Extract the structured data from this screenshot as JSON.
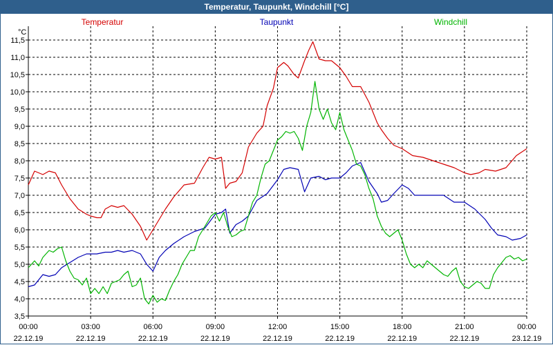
{
  "window": {
    "title": "Temperatur, Taupunkt, Windchill [°C]"
  },
  "chart_data": {
    "type": "line",
    "title": "Temperatur, Taupunkt, Windchill [°C]",
    "ylabel": "°C",
    "xlabel": "",
    "ylim": [
      3.5,
      11.8
    ],
    "xlim": [
      0,
      24
    ],
    "grid": true,
    "yticks": [
      "3,5",
      "4,0",
      "4,5",
      "5,0",
      "5,5",
      "6,0",
      "6,5",
      "7,0",
      "7,5",
      "8,0",
      "8,5",
      "9,0",
      "9,5",
      "10,0",
      "10,5",
      "11,0",
      "11,5"
    ],
    "ytick_values": [
      3.5,
      4.0,
      4.5,
      5.0,
      5.5,
      6.0,
      6.5,
      7.0,
      7.5,
      8.0,
      8.5,
      9.0,
      9.5,
      10.0,
      10.5,
      11.0,
      11.5
    ],
    "xticks": [
      {
        "x": 0,
        "time": "00:00",
        "date": "22.12.19"
      },
      {
        "x": 3,
        "time": "03:00",
        "date": "22.12.19"
      },
      {
        "x": 6,
        "time": "06:00",
        "date": "22.12.19"
      },
      {
        "x": 9,
        "time": "09:00",
        "date": "22.12.19"
      },
      {
        "x": 12,
        "time": "12:00",
        "date": "22.12.19"
      },
      {
        "x": 15,
        "time": "15:00",
        "date": "22.12.19"
      },
      {
        "x": 18,
        "time": "18:00",
        "date": "22.12.19"
      },
      {
        "x": 21,
        "time": "21:00",
        "date": "22.12.19"
      },
      {
        "x": 24,
        "time": "00:00",
        "date": "23.12.19"
      }
    ],
    "series": [
      {
        "name": "Temperatur",
        "color": "#d40000",
        "x": [
          0,
          0.3,
          0.7,
          1.0,
          1.3,
          1.6,
          2.0,
          2.4,
          2.8,
          3.0,
          3.3,
          3.5,
          3.7,
          4.0,
          4.3,
          4.6,
          5.0,
          5.4,
          5.7,
          6.0,
          6.3,
          6.6,
          7.0,
          7.5,
          8.0,
          8.4,
          8.7,
          9.0,
          9.3,
          9.5,
          9.7,
          10.0,
          10.3,
          10.6,
          11.0,
          11.3,
          11.5,
          11.8,
          12.0,
          12.3,
          12.5,
          12.8,
          13.0,
          13.3,
          13.5,
          13.7,
          14.0,
          14.3,
          14.6,
          15.0,
          15.3,
          15.6,
          16.0,
          16.4,
          16.8,
          17.0,
          17.3,
          17.6,
          18.0,
          18.5,
          19.0,
          19.5,
          20.0,
          20.5,
          21.0,
          21.3,
          21.7,
          22.0,
          22.5,
          23.0,
          23.5,
          24.0
        ],
        "values": [
          7.3,
          7.7,
          7.6,
          7.7,
          7.65,
          7.3,
          6.9,
          6.6,
          6.45,
          6.4,
          6.35,
          6.35,
          6.6,
          6.7,
          6.65,
          6.7,
          6.45,
          6.1,
          5.7,
          6.0,
          6.3,
          6.6,
          6.95,
          7.3,
          7.35,
          7.8,
          8.1,
          8.05,
          8.1,
          7.2,
          7.35,
          7.4,
          7.65,
          8.4,
          8.8,
          9.0,
          9.6,
          10.1,
          10.7,
          10.85,
          10.75,
          10.5,
          10.4,
          10.9,
          11.2,
          11.45,
          10.95,
          10.9,
          10.9,
          10.7,
          10.45,
          10.15,
          10.15,
          9.7,
          9.1,
          8.9,
          8.65,
          8.45,
          8.35,
          8.15,
          8.1,
          8.0,
          7.9,
          7.8,
          7.65,
          7.6,
          7.65,
          7.75,
          7.7,
          7.8,
          8.15,
          8.35
        ]
      },
      {
        "name": "Taupunkt",
        "color": "#0000b4",
        "x": [
          0,
          0.3,
          0.7,
          1.0,
          1.3,
          1.6,
          2.0,
          2.4,
          2.8,
          3.0,
          3.3,
          3.7,
          4.0,
          4.3,
          4.6,
          5.0,
          5.4,
          5.7,
          6.0,
          6.3,
          6.6,
          7.0,
          7.5,
          8.0,
          8.5,
          9.0,
          9.3,
          9.5,
          9.7,
          10.0,
          10.3,
          10.6,
          11.0,
          11.5,
          12.0,
          12.3,
          12.6,
          13.0,
          13.3,
          13.6,
          14.0,
          14.3,
          14.6,
          15.0,
          15.3,
          15.6,
          16.0,
          16.4,
          16.8,
          17.0,
          17.3,
          17.6,
          18.0,
          18.3,
          18.6,
          19.0,
          19.5,
          20.0,
          20.5,
          21.0,
          21.5,
          22.0,
          22.3,
          22.6,
          23.0,
          23.3,
          23.7,
          24.0
        ],
        "values": [
          4.35,
          4.4,
          4.7,
          4.65,
          4.7,
          4.9,
          5.05,
          5.2,
          5.3,
          5.3,
          5.3,
          5.35,
          5.35,
          5.4,
          5.35,
          5.4,
          5.3,
          5.0,
          4.8,
          5.2,
          5.4,
          5.6,
          5.8,
          5.95,
          6.05,
          6.45,
          6.5,
          6.6,
          5.9,
          6.15,
          6.25,
          6.4,
          6.85,
          7.05,
          7.45,
          7.75,
          7.8,
          7.75,
          7.1,
          7.5,
          7.55,
          7.45,
          7.5,
          7.5,
          7.65,
          7.85,
          7.95,
          7.4,
          7.05,
          6.8,
          6.85,
          7.05,
          7.3,
          7.2,
          7.0,
          7.0,
          7.0,
          7.0,
          6.8,
          6.8,
          6.6,
          6.3,
          6.05,
          5.85,
          5.8,
          5.7,
          5.75,
          5.85
        ]
      },
      {
        "name": "Windchill",
        "color": "#00b400",
        "x": [
          0,
          0.3,
          0.5,
          0.7,
          1.0,
          1.2,
          1.4,
          1.6,
          1.8,
          2.0,
          2.2,
          2.4,
          2.6,
          2.8,
          3.0,
          3.2,
          3.4,
          3.6,
          3.8,
          4.0,
          4.2,
          4.4,
          4.6,
          4.8,
          5.0,
          5.2,
          5.4,
          5.6,
          5.8,
          6.0,
          6.2,
          6.4,
          6.6,
          6.8,
          7.0,
          7.2,
          7.4,
          7.6,
          7.8,
          8.0,
          8.2,
          8.4,
          8.6,
          8.8,
          9.0,
          9.2,
          9.4,
          9.6,
          9.8,
          10.0,
          10.2,
          10.4,
          10.6,
          10.8,
          11.0,
          11.2,
          11.4,
          11.6,
          11.8,
          12.0,
          12.2,
          12.4,
          12.6,
          12.8,
          13.0,
          13.2,
          13.4,
          13.6,
          13.8,
          14.0,
          14.2,
          14.4,
          14.6,
          14.8,
          15.0,
          15.2,
          15.4,
          15.6,
          15.8,
          16.0,
          16.2,
          16.4,
          16.6,
          16.8,
          17.0,
          17.2,
          17.4,
          17.6,
          17.8,
          18.0,
          18.2,
          18.4,
          18.6,
          18.8,
          19.0,
          19.2,
          19.4,
          19.6,
          19.8,
          20.0,
          20.2,
          20.4,
          20.6,
          20.8,
          21.0,
          21.2,
          21.4,
          21.6,
          21.8,
          22.0,
          22.2,
          22.4,
          22.6,
          22.8,
          23.0,
          23.2,
          23.4,
          23.6,
          23.8,
          24.0
        ],
        "values": [
          4.9,
          5.1,
          4.95,
          5.2,
          5.4,
          5.35,
          5.45,
          5.5,
          5.1,
          4.8,
          4.6,
          4.55,
          4.4,
          4.6,
          4.15,
          4.3,
          4.15,
          4.35,
          4.15,
          4.45,
          4.5,
          4.55,
          4.7,
          4.8,
          4.35,
          4.4,
          4.6,
          4.0,
          3.85,
          4.1,
          3.9,
          4.0,
          3.95,
          4.25,
          4.5,
          4.7,
          5.0,
          5.2,
          5.4,
          5.4,
          5.8,
          6.0,
          6.2,
          6.4,
          6.5,
          6.25,
          6.5,
          6.1,
          5.8,
          5.85,
          5.95,
          6.0,
          6.4,
          6.8,
          7.0,
          7.5,
          7.9,
          8.0,
          8.3,
          8.6,
          8.7,
          8.85,
          8.8,
          8.85,
          8.65,
          8.3,
          9.0,
          9.4,
          10.3,
          9.5,
          9.2,
          9.5,
          9.1,
          8.9,
          9.4,
          8.9,
          8.6,
          8.3,
          7.9,
          7.85,
          7.6,
          7.2,
          6.9,
          6.4,
          6.1,
          5.9,
          5.8,
          5.9,
          6.0,
          5.7,
          5.3,
          5.0,
          4.9,
          5.0,
          4.9,
          5.1,
          5.0,
          4.9,
          4.8,
          4.7,
          4.65,
          4.8,
          4.9,
          4.5,
          4.35,
          4.3,
          4.4,
          4.5,
          4.45,
          4.3,
          4.3,
          4.7,
          4.9,
          5.05,
          5.2,
          5.25,
          5.15,
          5.2,
          5.1,
          5.15
        ]
      }
    ]
  }
}
